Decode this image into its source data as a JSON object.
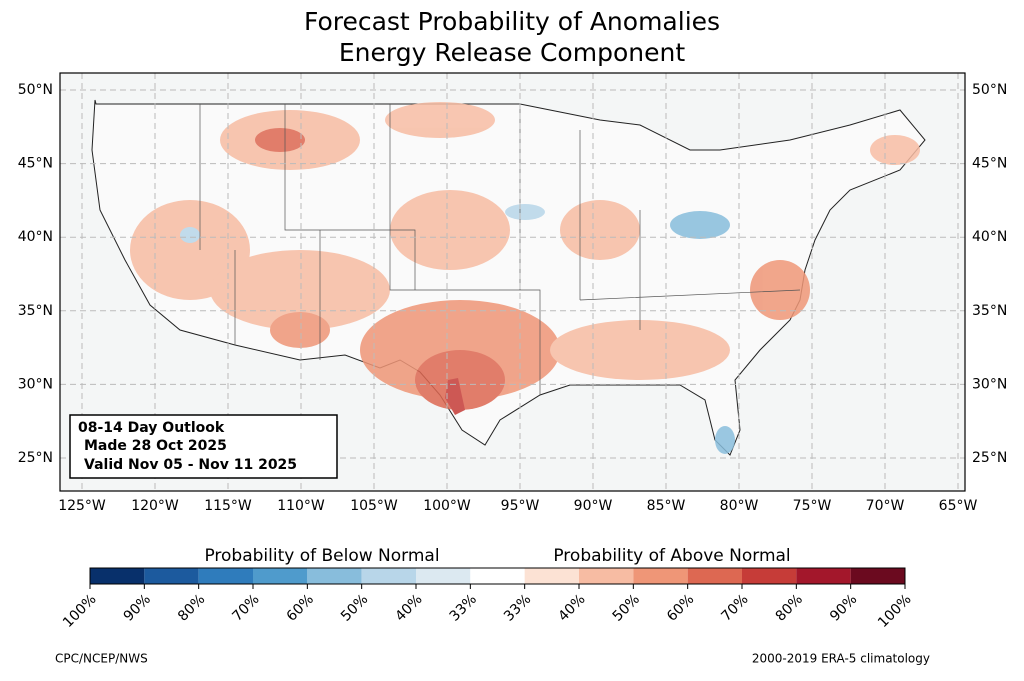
{
  "title": [
    "Forecast Probability of Anomalies",
    "Energy Release Component"
  ],
  "lat_labels": [
    "50°N",
    "45°N",
    "40°N",
    "35°N",
    "30°N",
    "25°N"
  ],
  "lon_labels": [
    "125°W",
    "120°W",
    "115°W",
    "110°W",
    "105°W",
    "100°W",
    "95°W",
    "90°W",
    "85°W",
    "80°W",
    "75°W",
    "70°W",
    "65°W"
  ],
  "info_box": [
    "08-14 Day Outlook",
    "Made 28 Oct 2025",
    "Valid Nov 05 - Nov 11 2025"
  ],
  "colorbar": {
    "below_label": "Probability of Below Normal",
    "above_label": "Probability of Above Normal",
    "colors": [
      "#08306b",
      "#1c5a9e",
      "#2f7cbc",
      "#4f9bcc",
      "#88bddc",
      "#b8d6e9",
      "#dce9f1",
      "#ffffff",
      "#fce2d4",
      "#f7bca3",
      "#ef9677",
      "#dd6852",
      "#c63c38",
      "#a3172b",
      "#6b0a1f"
    ],
    "tick_labels": [
      "100%",
      "90%",
      "80%",
      "70%",
      "60%",
      "50%",
      "40%",
      "33%",
      "33%",
      "40%",
      "50%",
      "60%",
      "70%",
      "80%",
      "90%",
      "100%"
    ]
  },
  "footer": {
    "left": "CPC/NCEP/NWS",
    "right": "2000-2019 ERA-5 climatology"
  }
}
